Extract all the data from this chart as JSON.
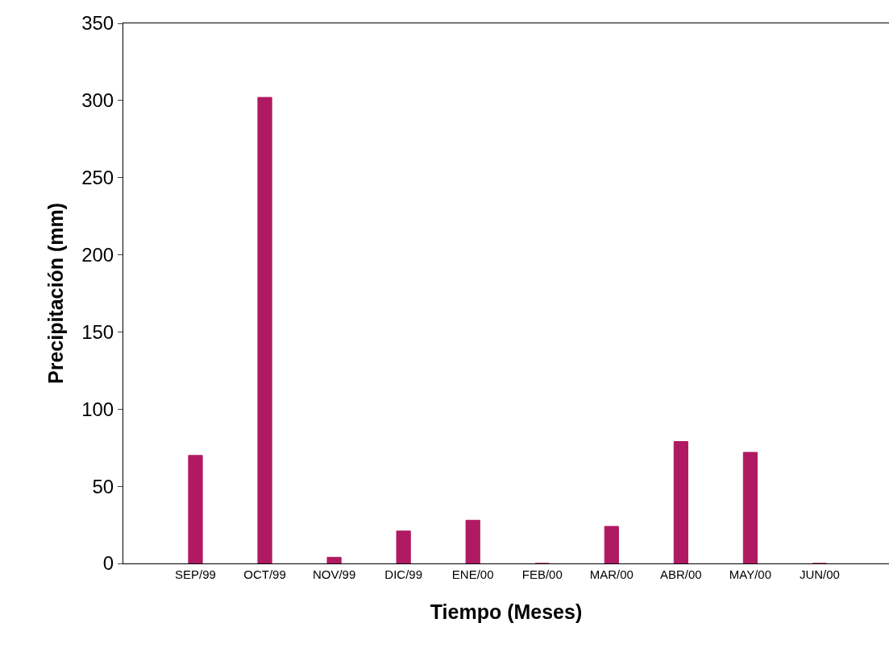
{
  "chart_data": {
    "type": "bar",
    "xlabel": "Tiempo (Meses)",
    "ylabel": "Precipitación (mm)",
    "categories": [
      "SEP/99",
      "OCT/99",
      "NOV/99",
      "DIC/99",
      "ENE/00",
      "FEB/00",
      "MAR/00",
      "ABR/00",
      "MAY/00",
      "JUN/00"
    ],
    "values": [
      70,
      302,
      4,
      21,
      28,
      0,
      24,
      79,
      72,
      0
    ],
    "color": "#b01a62",
    "ylim": [
      0,
      350
    ],
    "yticks": [
      0,
      50,
      100,
      150,
      200,
      250,
      300,
      350
    ],
    "legend": false
  }
}
